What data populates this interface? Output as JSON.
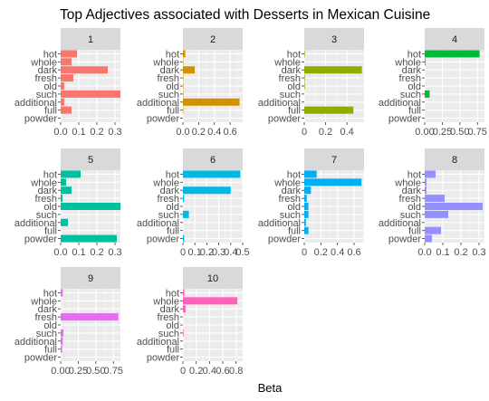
{
  "chart_data": {
    "type": "bar",
    "orientation": "horizontal",
    "title": "Top Adjectives associated with Desserts in Mexican Cuisine",
    "xlabel": "Beta",
    "ylabel": "",
    "grid": true,
    "legend": "none",
    "categories": [
      "hot",
      "whole",
      "dark",
      "fresh",
      "old",
      "such",
      "additional",
      "full",
      "powder"
    ],
    "facets": [
      {
        "label": "1",
        "color": "#F8766D",
        "xlim": [
          0,
          0.33
        ],
        "ticks": [
          0.0,
          0.1,
          0.2,
          0.3
        ],
        "tick_labels": [
          "0.0",
          "0.1",
          "0.2",
          "0.3"
        ],
        "values": [
          0.09,
          0.06,
          0.26,
          0.07,
          0.02,
          0.33,
          0.02,
          0.06,
          0.0
        ]
      },
      {
        "label": "2",
        "color": "#D39200",
        "xlim": [
          0,
          0.76
        ],
        "ticks": [
          0.0,
          0.2,
          0.4,
          0.6
        ],
        "tick_labels": [
          "0.0",
          "0.2",
          "0.4",
          "0.6"
        ],
        "values": [
          0.03,
          0.005,
          0.15,
          0.005,
          0.005,
          0.005,
          0.72,
          0.005,
          0.0
        ]
      },
      {
        "label": "3",
        "color": "#93AA00",
        "xlim": [
          0,
          0.56
        ],
        "ticks": [
          0,
          0.2,
          0.4
        ],
        "tick_labels": [
          "0",
          "0.2",
          "0.4"
        ],
        "values": [
          0.005,
          0.0,
          0.54,
          0.005,
          0.005,
          0.0,
          0.0,
          0.46,
          0.0
        ]
      },
      {
        "label": "4",
        "color": "#00BA38",
        "xlim": [
          0,
          0.85
        ],
        "ticks": [
          0.0,
          0.25,
          0.5,
          0.75
        ],
        "tick_labels": [
          "0.00",
          "0.25",
          "0.50",
          "0.75"
        ],
        "values": [
          0.78,
          0.01,
          0.0,
          0.0,
          0.0,
          0.07,
          0.0,
          0.0,
          0.0
        ]
      },
      {
        "label": "5",
        "color": "#00C19F",
        "xlim": [
          0,
          0.33
        ],
        "ticks": [
          0.0,
          0.1,
          0.2,
          0.3
        ],
        "tick_labels": [
          "0.0",
          "0.1",
          "0.2",
          "0.3"
        ],
        "values": [
          0.11,
          0.03,
          0.06,
          0.01,
          0.33,
          0.0,
          0.04,
          0.0,
          0.31
        ]
      },
      {
        "label": "6",
        "color": "#00B9E3",
        "xlim": [
          0,
          0.5
        ],
        "ticks": [
          0.0,
          0.1,
          0.2,
          0.3,
          0.4,
          0.5
        ],
        "tick_labels": [
          "0",
          "0.1",
          "0.2",
          "0.3",
          "0.4",
          "0.5"
        ],
        "values": [
          0.48,
          0.0,
          0.4,
          0.01,
          0.0,
          0.05,
          0.0,
          0.0,
          0.01
        ]
      },
      {
        "label": "7",
        "color": "#00B0F6",
        "xlim": [
          0,
          0.72
        ],
        "ticks": [
          0.0,
          0.2,
          0.4,
          0.6
        ],
        "tick_labels": [
          "0",
          "0.2",
          "0.4",
          "0.6"
        ],
        "values": [
          0.15,
          0.69,
          0.08,
          0.03,
          0.05,
          0.05,
          0.02,
          0.05,
          0.0
        ]
      },
      {
        "label": "8",
        "color": "#9590FF",
        "xlim": [
          0,
          0.33
        ],
        "ticks": [
          0.0,
          0.1,
          0.2,
          0.3
        ],
        "tick_labels": [
          "0.0",
          "0.1",
          "0.2",
          "0.3"
        ],
        "values": [
          0.06,
          0.01,
          0.01,
          0.11,
          0.32,
          0.13,
          0.0,
          0.09,
          0.04
        ]
      },
      {
        "label": "9",
        "color": "#E76BF3",
        "xlim": [
          0,
          0.85
        ],
        "ticks": [
          0.0,
          0.25,
          0.5,
          0.75
        ],
        "tick_labels": [
          "0.00",
          "0.25",
          "0.50",
          "0.75"
        ],
        "values": [
          0.03,
          0.0,
          0.0,
          0.82,
          0.0,
          0.04,
          0.03,
          0.02,
          0.0
        ]
      },
      {
        "label": "10",
        "color": "#FF62BC",
        "xlim": [
          0,
          0.9
        ],
        "ticks": [
          0.0,
          0.2,
          0.4,
          0.6,
          0.8
        ],
        "tick_labels": [
          "0",
          "0.2",
          "0.4",
          "0.6",
          "0.8"
        ],
        "values": [
          0.02,
          0.82,
          0.04,
          0.0,
          0.0,
          0.01,
          0.0,
          0.0,
          0.0
        ]
      }
    ]
  }
}
